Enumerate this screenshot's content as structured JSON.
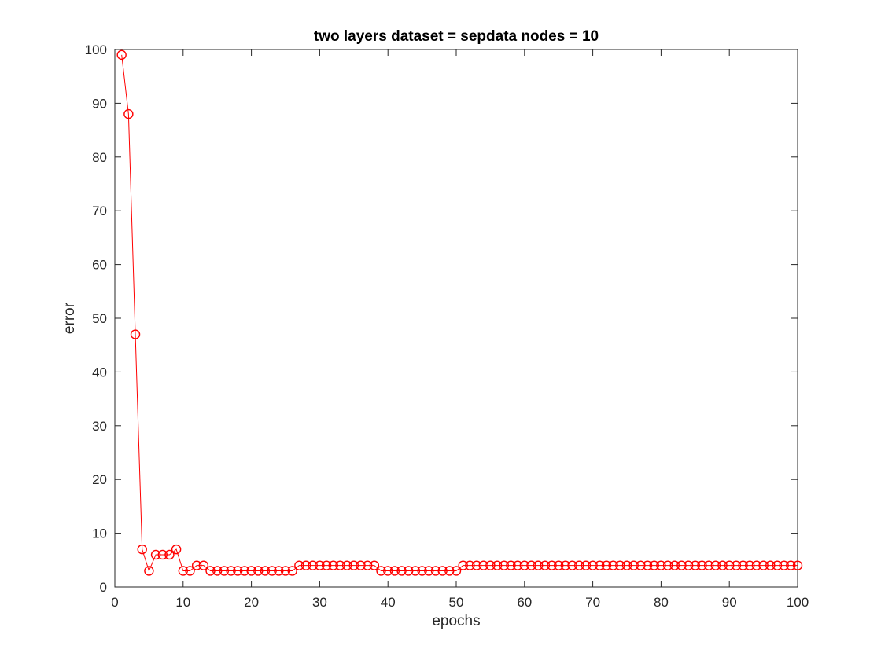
{
  "chart_data": {
    "type": "line",
    "title": "two layers  dataset = sepdata  nodes = 10",
    "xlabel": "epochs",
    "ylabel": "error",
    "xlim": [
      0,
      100
    ],
    "ylim": [
      0,
      100
    ],
    "xticks": [
      "0",
      "10",
      "20",
      "30",
      "40",
      "50",
      "60",
      "70",
      "80",
      "90",
      "100"
    ],
    "yticks": [
      "0",
      "10",
      "20",
      "30",
      "40",
      "50",
      "60",
      "70",
      "80",
      "90",
      "100"
    ],
    "grid": false,
    "marker": "circle",
    "color": "#ff0000",
    "series": [
      {
        "x": [
          1,
          2,
          3,
          4,
          5,
          6,
          7,
          8,
          9,
          10,
          11,
          12,
          13,
          14,
          15,
          16,
          17,
          18,
          19,
          20,
          21,
          22,
          23,
          24,
          25,
          26,
          27,
          28,
          29,
          30,
          31,
          32,
          33,
          34,
          35,
          36,
          37,
          38,
          39,
          40,
          41,
          42,
          43,
          44,
          45,
          46,
          47,
          48,
          49,
          50,
          51,
          52,
          53,
          54,
          55,
          56,
          57,
          58,
          59,
          60,
          61,
          62,
          63,
          64,
          65,
          66,
          67,
          68,
          69,
          70,
          71,
          72,
          73,
          74,
          75,
          76,
          77,
          78,
          79,
          80,
          81,
          82,
          83,
          84,
          85,
          86,
          87,
          88,
          89,
          90,
          91,
          92,
          93,
          94,
          95,
          96,
          97,
          98,
          99,
          100
        ],
        "values": [
          99,
          88,
          47,
          7,
          3,
          6,
          6,
          6,
          7,
          3,
          3,
          4,
          4,
          3,
          3,
          3,
          3,
          3,
          3,
          3,
          3,
          3,
          3,
          3,
          3,
          3,
          4,
          4,
          4,
          4,
          4,
          4,
          4,
          4,
          4,
          4,
          4,
          4,
          3,
          3,
          3,
          3,
          3,
          3,
          3,
          3,
          3,
          3,
          3,
          3,
          4,
          4,
          4,
          4,
          4,
          4,
          4,
          4,
          4,
          4,
          4,
          4,
          4,
          4,
          4,
          4,
          4,
          4,
          4,
          4,
          4,
          4,
          4,
          4,
          4,
          4,
          4,
          4,
          4,
          4,
          4,
          4,
          4,
          4,
          4,
          4,
          4,
          4,
          4,
          4,
          4,
          4,
          4,
          4,
          4,
          4,
          4,
          4,
          4,
          4
        ]
      }
    ]
  }
}
